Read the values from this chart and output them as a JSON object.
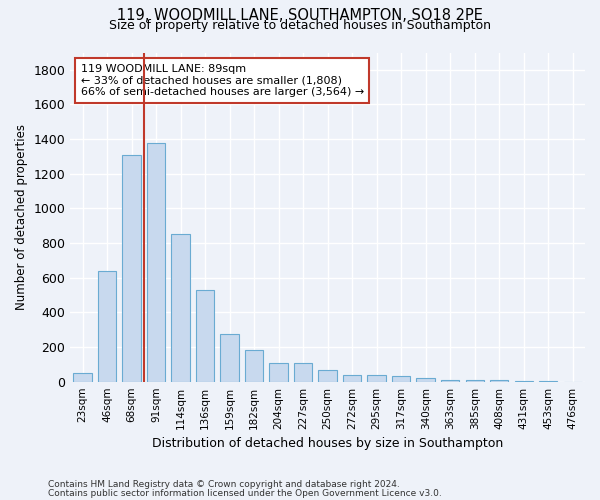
{
  "title1": "119, WOODMILL LANE, SOUTHAMPTON, SO18 2PE",
  "title2": "Size of property relative to detached houses in Southampton",
  "xlabel": "Distribution of detached houses by size in Southampton",
  "ylabel": "Number of detached properties",
  "categories": [
    "23sqm",
    "46sqm",
    "68sqm",
    "91sqm",
    "114sqm",
    "136sqm",
    "159sqm",
    "182sqm",
    "204sqm",
    "227sqm",
    "250sqm",
    "272sqm",
    "295sqm",
    "317sqm",
    "340sqm",
    "363sqm",
    "385sqm",
    "408sqm",
    "431sqm",
    "453sqm",
    "476sqm"
  ],
  "values": [
    50,
    640,
    1310,
    1380,
    850,
    530,
    275,
    185,
    105,
    105,
    65,
    38,
    38,
    30,
    22,
    10,
    10,
    10,
    5,
    5,
    0
  ],
  "bar_color": "#c8d9ee",
  "bar_edgecolor": "#6aabd2",
  "bar_linewidth": 0.8,
  "vline_x": 2.5,
  "vline_color": "#c0392b",
  "annotation_text": "119 WOODMILL LANE: 89sqm\n← 33% of detached houses are smaller (1,808)\n66% of semi-detached houses are larger (3,564) →",
  "annotation_box_edgecolor": "#c0392b",
  "annotation_box_facecolor": "#ffffff",
  "ylim": [
    0,
    1900
  ],
  "background_color": "#eef2f9",
  "grid_color": "#ffffff",
  "footnote1": "Contains HM Land Registry data © Crown copyright and database right 2024.",
  "footnote2": "Contains public sector information licensed under the Open Government Licence v3.0."
}
